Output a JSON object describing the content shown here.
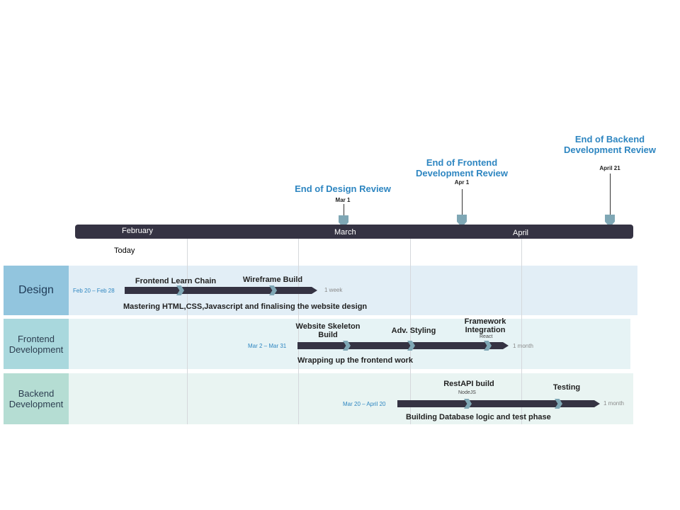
{
  "milestones": [
    {
      "title": "End of Design Review",
      "date": "Mar 1"
    },
    {
      "title_line1": "End of Frontend",
      "title_line2": "Development Review",
      "date": "Apr 1"
    },
    {
      "title_line1": "End of Backend",
      "title_line2": "Development Review",
      "date": "April 21"
    }
  ],
  "timeline": {
    "months": [
      "February",
      "March",
      "April"
    ],
    "today_label": "Today"
  },
  "rows": [
    {
      "label": "Design",
      "range": "Feb 20 – Feb 28",
      "duration": "1 week",
      "tasks": [
        {
          "name": "Frontend Learn Chain"
        },
        {
          "name": "Wireframe Build"
        }
      ],
      "description": "Mastering HTML,CSS,Javascript and finalising  the website design"
    },
    {
      "label_line1": "Frontend",
      "label_line2": "Development",
      "range": "Mar 2 – Mar 31",
      "duration": "1 month",
      "tasks": [
        {
          "name_line1": "Website Skeleton",
          "name_line2": "Build"
        },
        {
          "name": "Adv. Styling"
        },
        {
          "name_line1": "Framework",
          "name_line2": "Integration",
          "sub": "React"
        }
      ],
      "description": "Wrapping up the frontend work"
    },
    {
      "label_line1": "Backend",
      "label_line2": "Development",
      "range": "Mar 20 – April 20",
      "duration": "1 month",
      "tasks": [
        {
          "name": "RestAPI build",
          "sub": "NodeJS"
        },
        {
          "name": "Testing"
        }
      ],
      "description": "Building Database logic and test phase"
    }
  ],
  "colors": {
    "timeline_bar": "#353343",
    "milestone_title": "#2e86c1",
    "marker": "#7fa7b5",
    "design_label_bg": "#92c5de",
    "design_row_bg": "#e2eef6",
    "frontend_label_bg": "#a9d8dd",
    "frontend_row_bg": "#e6f3f5",
    "backend_label_bg": "#b5ddd3",
    "backend_row_bg": "#e9f4f2"
  }
}
